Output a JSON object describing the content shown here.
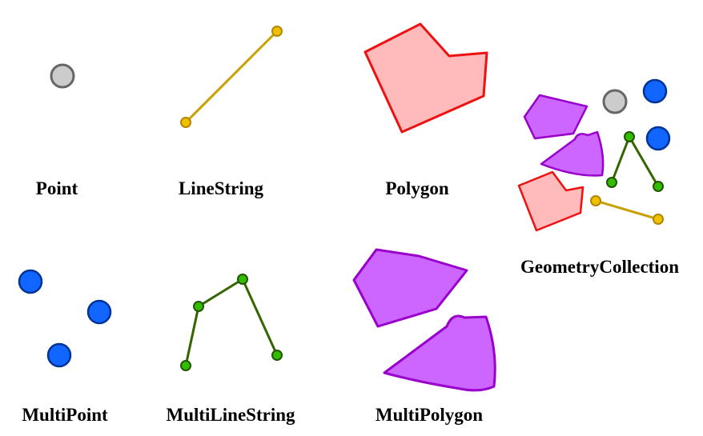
{
  "labels": {
    "point": "Point",
    "linestring": "LineString",
    "polygon": "Polygon",
    "geometrycollection": "GeometryCollection",
    "multipoint": "MultiPoint",
    "multilinestring": "MultiLineString",
    "multipolygon": "MultiPolygon"
  },
  "colors": {
    "point_fill": "#cccccc",
    "point_stroke": "#666666",
    "line_stroke": "#c8a000",
    "line_vertex_fill": "#f0c000",
    "polygon_fill": "#ffbbbb",
    "polygon_stroke": "#ee1111",
    "multipoint_fill": "#1166ff",
    "multipoint_stroke": "#003399",
    "multiline_stroke": "#336600",
    "multiline_vertex_fill": "#33bb00",
    "multipolygon_fill": "#cc66ff",
    "multipolygon_stroke": "#9900cc"
  }
}
